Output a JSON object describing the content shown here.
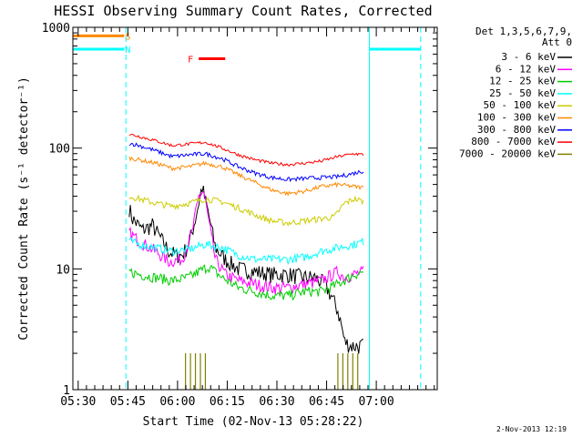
{
  "chart_data": {
    "type": "line",
    "title": "HESSI Observing Summary Count Rates, Corrected",
    "xlabel": "Start Time (02-Nov-13 05:28:22)",
    "ylabel": "Corrected Count Rate (s⁻¹ detector⁻¹)",
    "x_unit": "minutes after 05:28:22",
    "xlim": [
      0,
      110
    ],
    "ylim": [
      1,
      1000
    ],
    "y_scale": "log",
    "x_ticks": [
      {
        "t": 1.6,
        "label": "05:30"
      },
      {
        "t": 16.6,
        "label": "05:45"
      },
      {
        "t": 31.6,
        "label": "06:00"
      },
      {
        "t": 46.6,
        "label": "06:15"
      },
      {
        "t": 61.6,
        "label": "06:30"
      },
      {
        "t": 76.6,
        "label": "06:45"
      },
      {
        "t": 91.6,
        "label": "07:00"
      }
    ],
    "y_ticks": [
      {
        "v": 1,
        "label": "1"
      },
      {
        "v": 10,
        "label": "10"
      },
      {
        "v": 100,
        "label": "100"
      },
      {
        "v": 1000,
        "label": "1000"
      }
    ],
    "legend_header": [
      "Det 1,3,5,6,7,9,",
      "Att 0"
    ],
    "legend_placement": "right",
    "series": [
      {
        "name": "3 - 6 keV",
        "color": "#000000",
        "x": [
          17,
          18,
          21,
          24,
          27,
          29,
          31,
          33,
          35,
          37,
          39,
          41,
          43,
          46,
          50,
          55,
          60,
          65,
          70,
          73,
          76,
          78,
          80,
          81,
          82,
          84,
          86,
          88
        ],
        "y": [
          32,
          26,
          21,
          23,
          17,
          14,
          13,
          13,
          16,
          26,
          48,
          28,
          15,
          12,
          10,
          9.5,
          9,
          9,
          8.5,
          8.5,
          7.5,
          6,
          4.5,
          3.5,
          2.5,
          2.3,
          2.3,
          2.3
        ]
      },
      {
        "name": "6 - 12 keV",
        "color": "#ff00ff",
        "x": [
          17,
          20,
          25,
          29,
          33,
          36,
          38,
          39.5,
          41,
          43,
          46,
          50,
          55,
          60,
          65,
          70,
          75,
          80,
          82,
          85,
          88
        ],
        "y": [
          20,
          17,
          14,
          11.5,
          12,
          20,
          40,
          44,
          25,
          12,
          9,
          8,
          7.5,
          7,
          7,
          7.5,
          8,
          9.5,
          8.5,
          9,
          9.5
        ]
      },
      {
        "name": "12 - 25 keV",
        "color": "#00cc00",
        "x": [
          17,
          20,
          25,
          30,
          35,
          38,
          41,
          45,
          50,
          55,
          60,
          65,
          70,
          75,
          80,
          85,
          88
        ],
        "y": [
          9.5,
          9,
          8.5,
          8,
          8.5,
          9.5,
          10.5,
          8.5,
          7,
          6.5,
          6,
          6,
          6.5,
          6.5,
          7.5,
          9,
          9.5
        ]
      },
      {
        "name": "25 - 50 keV",
        "color": "#00ffff",
        "x": [
          17,
          20,
          25,
          30,
          35,
          40,
          45,
          50,
          55,
          60,
          65,
          70,
          75,
          80,
          85,
          88
        ],
        "y": [
          17,
          16,
          15,
          14,
          14.5,
          16,
          15,
          13,
          12,
          12,
          12,
          12.5,
          14,
          15,
          16,
          17
        ]
      },
      {
        "name": "50 - 100 keV",
        "color": "#cccc00",
        "x": [
          17,
          20,
          25,
          30,
          35,
          40,
          45,
          50,
          55,
          60,
          65,
          70,
          75,
          79,
          82,
          85,
          88
        ],
        "y": [
          40,
          38,
          35,
          33,
          35,
          38,
          36,
          32,
          28,
          25,
          24,
          25,
          26,
          27,
          35,
          38,
          36
        ]
      },
      {
        "name": "100 - 300 keV",
        "color": "#ff8800",
        "x": [
          17,
          20,
          25,
          30,
          35,
          40,
          45,
          50,
          55,
          60,
          65,
          70,
          75,
          80,
          85,
          88
        ],
        "y": [
          83,
          80,
          75,
          68,
          70,
          75,
          70,
          60,
          52,
          45,
          42,
          44,
          48,
          50,
          48,
          47
        ]
      },
      {
        "name": "300 - 800 keV",
        "color": "#0000ff",
        "x": [
          17,
          20,
          25,
          30,
          35,
          40,
          45,
          50,
          55,
          60,
          65,
          70,
          75,
          80,
          85,
          88
        ],
        "y": [
          110,
          105,
          95,
          85,
          88,
          90,
          82,
          70,
          62,
          57,
          55,
          56,
          57,
          58,
          62,
          65
        ]
      },
      {
        "name": "800 - 7000 keV",
        "color": "#ff0000",
        "x": [
          17,
          20,
          25,
          30,
          35,
          40,
          45,
          50,
          55,
          60,
          65,
          70,
          75,
          80,
          85,
          88
        ],
        "y": [
          130,
          125,
          115,
          105,
          108,
          112,
          100,
          88,
          80,
          75,
          73,
          75,
          78,
          85,
          90,
          88
        ]
      },
      {
        "name": "7000 - 20000 keV",
        "color": "#808000",
        "x": [
          34,
          35.5,
          37,
          38.5,
          40,
          80,
          81.5,
          83,
          84.5,
          86
        ],
        "y": [
          2,
          2,
          2,
          2,
          2,
          2,
          2,
          2,
          2,
          2
        ]
      }
    ],
    "flag_bars": [
      {
        "label": "S",
        "color": "#ff8800",
        "x": [
          0,
          15.5
        ],
        "level": 850
      },
      {
        "label": "N",
        "color": "#00ffff",
        "x": [
          0,
          15.5
        ],
        "level": 660
      },
      {
        "label": "F",
        "color": "#ff0000",
        "x": [
          38,
          46
        ],
        "level": 550
      },
      {
        "label": "",
        "color": "#00ffff",
        "x": [
          89.5,
          105
        ],
        "level": 660
      }
    ],
    "vertical_lines": [
      {
        "t": 0,
        "color": "#00ffff",
        "style": "solid"
      },
      {
        "t": 16,
        "color": "#00ffff",
        "style": "dashed"
      },
      {
        "t": 89.5,
        "color": "#00ffff",
        "style": "solid"
      },
      {
        "t": 105,
        "color": "#00ffff",
        "style": "dashed"
      }
    ],
    "footer": "2-Nov-2013 12:19"
  }
}
